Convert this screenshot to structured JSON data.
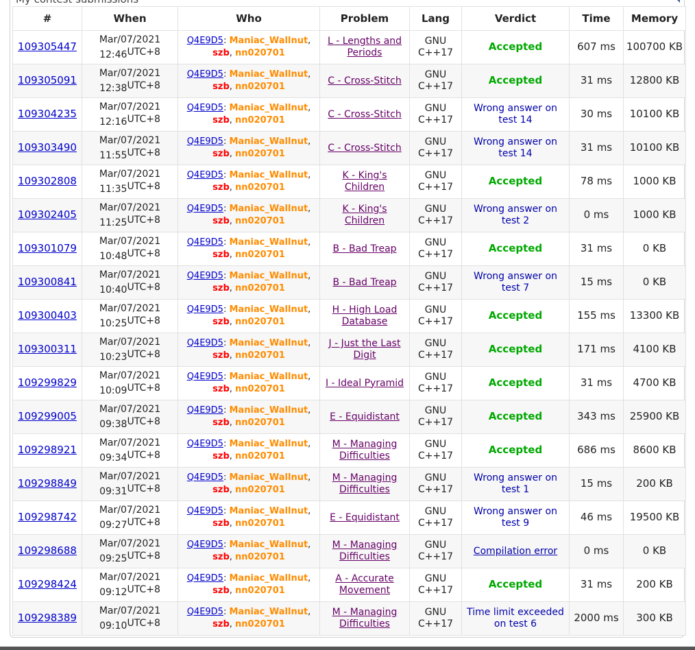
{
  "panel": {
    "title": "My contest submissions"
  },
  "colors": {
    "accepted": "#00a900",
    "rejected": "#0000aa",
    "handle_orange": "#ff8c00",
    "handle_red": "#ff0000",
    "problem_link": "#660066",
    "id_link": "#0000cc"
  },
  "columns": [
    "#",
    "When",
    "Who",
    "Problem",
    "Lang",
    "Verdict",
    "Time",
    "Memory"
  ],
  "team": "Q4E9D5",
  "members": [
    "Maniac_Wallnut",
    "szb",
    "nn020701"
  ],
  "rows": [
    {
      "id": "109305447",
      "date": "Mar/07/2021",
      "time": "12:46",
      "tz": "UTC+8",
      "problem": "L - Lengths and Periods",
      "lang": "GNU C++17",
      "verdict": "Accepted",
      "ok": true,
      "exec": "607 ms",
      "mem": "100700 KB"
    },
    {
      "id": "109305091",
      "date": "Mar/07/2021",
      "time": "12:38",
      "tz": "UTC+8",
      "problem": "C - Cross-Stitch",
      "lang": "GNU C++17",
      "verdict": "Accepted",
      "ok": true,
      "exec": "31 ms",
      "mem": "12800 KB"
    },
    {
      "id": "109304235",
      "date": "Mar/07/2021",
      "time": "12:16",
      "tz": "UTC+8",
      "problem": "C - Cross-Stitch",
      "lang": "GNU C++17",
      "verdict": "Wrong answer on test 14",
      "ok": false,
      "exec": "30 ms",
      "mem": "10100 KB"
    },
    {
      "id": "109303490",
      "date": "Mar/07/2021",
      "time": "11:55",
      "tz": "UTC+8",
      "problem": "C - Cross-Stitch",
      "lang": "GNU C++17",
      "verdict": "Wrong answer on test 14",
      "ok": false,
      "exec": "31 ms",
      "mem": "10100 KB"
    },
    {
      "id": "109302808",
      "date": "Mar/07/2021",
      "time": "11:35",
      "tz": "UTC+8",
      "problem": "K - King's Children",
      "lang": "GNU C++17",
      "verdict": "Accepted",
      "ok": true,
      "exec": "78 ms",
      "mem": "1000 KB"
    },
    {
      "id": "109302405",
      "date": "Mar/07/2021",
      "time": "11:25",
      "tz": "UTC+8",
      "problem": "K - King's Children",
      "lang": "GNU C++17",
      "verdict": "Wrong answer on test 2",
      "ok": false,
      "exec": "0 ms",
      "mem": "1000 KB"
    },
    {
      "id": "109301079",
      "date": "Mar/07/2021",
      "time": "10:48",
      "tz": "UTC+8",
      "problem": "B - Bad Treap",
      "lang": "GNU C++17",
      "verdict": "Accepted",
      "ok": true,
      "exec": "31 ms",
      "mem": "0 KB"
    },
    {
      "id": "109300841",
      "date": "Mar/07/2021",
      "time": "10:40",
      "tz": "UTC+8",
      "problem": "B - Bad Treap",
      "lang": "GNU C++17",
      "verdict": "Wrong answer on test 7",
      "ok": false,
      "exec": "15 ms",
      "mem": "0 KB"
    },
    {
      "id": "109300403",
      "date": "Mar/07/2021",
      "time": "10:25",
      "tz": "UTC+8",
      "problem": "H - High Load Database",
      "lang": "GNU C++17",
      "verdict": "Accepted",
      "ok": true,
      "exec": "155 ms",
      "mem": "13300 KB"
    },
    {
      "id": "109300311",
      "date": "Mar/07/2021",
      "time": "10:23",
      "tz": "UTC+8",
      "problem": "J - Just the Last Digit",
      "lang": "GNU C++17",
      "verdict": "Accepted",
      "ok": true,
      "exec": "171 ms",
      "mem": "4100 KB"
    },
    {
      "id": "109299829",
      "date": "Mar/07/2021",
      "time": "10:09",
      "tz": "UTC+8",
      "problem": "I - Ideal Pyramid",
      "lang": "GNU C++17",
      "verdict": "Accepted",
      "ok": true,
      "exec": "31 ms",
      "mem": "4700 KB"
    },
    {
      "id": "109299005",
      "date": "Mar/07/2021",
      "time": "09:38",
      "tz": "UTC+8",
      "problem": "E - Equidistant",
      "lang": "GNU C++17",
      "verdict": "Accepted",
      "ok": true,
      "exec": "343 ms",
      "mem": "25900 KB"
    },
    {
      "id": "109298921",
      "date": "Mar/07/2021",
      "time": "09:34",
      "tz": "UTC+8",
      "problem": "M - Managing Difficulties",
      "lang": "GNU C++17",
      "verdict": "Accepted",
      "ok": true,
      "exec": "686 ms",
      "mem": "8600 KB"
    },
    {
      "id": "109298849",
      "date": "Mar/07/2021",
      "time": "09:31",
      "tz": "UTC+8",
      "problem": "M - Managing Difficulties",
      "lang": "GNU C++17",
      "verdict": "Wrong answer on test 1",
      "ok": false,
      "exec": "15 ms",
      "mem": "200 KB"
    },
    {
      "id": "109298742",
      "date": "Mar/07/2021",
      "time": "09:27",
      "tz": "UTC+8",
      "problem": "E - Equidistant",
      "lang": "GNU C++17",
      "verdict": "Wrong answer on test 9",
      "ok": false,
      "exec": "46 ms",
      "mem": "19500 KB"
    },
    {
      "id": "109298688",
      "date": "Mar/07/2021",
      "time": "09:25",
      "tz": "UTC+8",
      "problem": "M - Managing Difficulties",
      "lang": "GNU C++17",
      "verdict": "Compilation error",
      "ok": false,
      "ce": true,
      "exec": "0 ms",
      "mem": "0 KB"
    },
    {
      "id": "109298424",
      "date": "Mar/07/2021",
      "time": "09:12",
      "tz": "UTC+8",
      "problem": "A - Accurate Movement",
      "lang": "GNU C++17",
      "verdict": "Accepted",
      "ok": true,
      "exec": "31 ms",
      "mem": "200 KB"
    },
    {
      "id": "109298389",
      "date": "Mar/07/2021",
      "time": "09:10",
      "tz": "UTC+8",
      "problem": "M - Managing Difficulties",
      "lang": "GNU C++17",
      "verdict": "Time limit exceeded on test 6",
      "ok": false,
      "exec": "2000 ms",
      "mem": "300 KB"
    }
  ]
}
